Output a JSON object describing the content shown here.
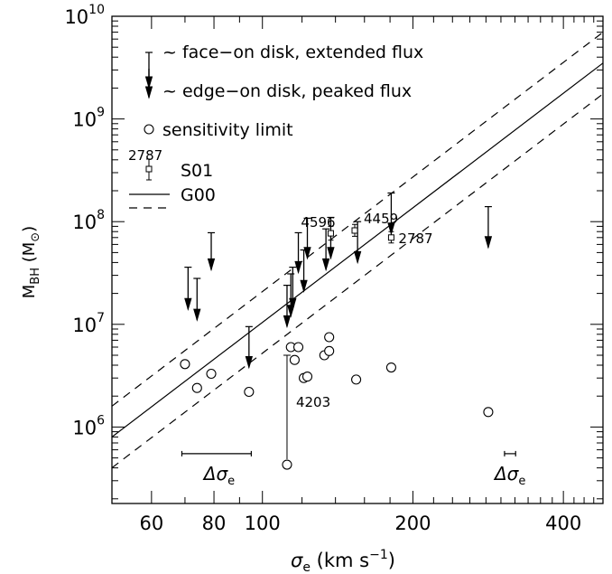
{
  "chart_data": {
    "type": "scatter",
    "xscale": "log",
    "yscale": "log",
    "xlim": [
      50,
      480
    ],
    "ylim": [
      180000,
      10000000000
    ],
    "xlabel": {
      "sym": "σ",
      "sub": "e",
      "rest": "(km s",
      "sup": "−1",
      "close": ")"
    },
    "ylabel": {
      "main": "M",
      "sub": "BH",
      "unit": "(M",
      "unitsub": "⊙",
      "close": ")"
    },
    "xticks": [
      {
        "value": 60,
        "label": "60"
      },
      {
        "value": 80,
        "label": "80"
      },
      {
        "value": 100,
        "label": "100"
      },
      {
        "value": 200,
        "label": "200"
      },
      {
        "value": 400,
        "label": "400"
      }
    ],
    "yticks": [
      {
        "value": 1000000,
        "base": "10",
        "exp": "6"
      },
      {
        "value": 10000000,
        "base": "10",
        "exp": "7"
      },
      {
        "value": 100000000,
        "base": "10",
        "exp": "8"
      },
      {
        "value": 1000000000,
        "base": "10",
        "exp": "9"
      },
      {
        "value": 10000000000,
        "base": "10",
        "exp": "10"
      }
    ],
    "legend": [
      {
        "symbol": "long-arrow",
        "text": "~ face−on disk, extended flux"
      },
      {
        "symbol": "short-arrow",
        "text": "~ edge−on disk, peaked flux"
      },
      {
        "symbol": "circle",
        "text": "sensitivity limit"
      },
      {
        "symbol": "square-errorbar",
        "text": "S01",
        "tag": "2787"
      },
      {
        "symbol": "solid-line",
        "text": "G00"
      },
      {
        "symbol": "dashed-line",
        "text": ""
      }
    ],
    "relation": {
      "name": "G00",
      "points": [
        [
          50,
          800000
        ],
        [
          480,
          3500000000
        ]
      ],
      "dex_offset": 0.3
    },
    "upper_limits": [
      {
        "sigma": 71,
        "top": 36000000,
        "bottom": 14000000
      },
      {
        "sigma": 74,
        "top": 28000000,
        "bottom": 11000000
      },
      {
        "sigma": 79,
        "top": 78000000,
        "bottom": 34000000
      },
      {
        "sigma": 94,
        "top": 9500000,
        "bottom": 3800000
      },
      {
        "sigma": 112,
        "top": 24000000,
        "bottom": 9500000
      },
      {
        "sigma": 114,
        "top": 31000000,
        "bottom": 12000000
      },
      {
        "sigma": 115,
        "top": 36000000,
        "bottom": 14000000
      },
      {
        "sigma": 118,
        "top": 78000000,
        "bottom": 32000000
      },
      {
        "sigma": 121,
        "top": 53000000,
        "bottom": 21000000
      },
      {
        "sigma": 123,
        "top": 108000000,
        "bottom": 44000000
      },
      {
        "sigma": 134,
        "top": 85000000,
        "bottom": 34000000
      },
      {
        "sigma": 137,
        "top": 110000000,
        "bottom": 44000000
      },
      {
        "sigma": 155,
        "top": 100000000,
        "bottom": 40000000
      },
      {
        "sigma": 181,
        "top": 190000000,
        "bottom": 76000000
      },
      {
        "sigma": 283,
        "top": 140000000,
        "bottom": 56000000
      }
    ],
    "sensitivity_limits": [
      {
        "sigma": 70,
        "mass": 4100000
      },
      {
        "sigma": 74,
        "mass": 2400000
      },
      {
        "sigma": 79,
        "mass": 3300000
      },
      {
        "sigma": 94,
        "mass": 2200000
      },
      {
        "sigma": 112,
        "mass": 430000
      },
      {
        "sigma": 114,
        "mass": 6000000
      },
      {
        "sigma": 116,
        "mass": 4500000
      },
      {
        "sigma": 118,
        "mass": 6000000
      },
      {
        "sigma": 121,
        "mass": 3000000
      },
      {
        "sigma": 123,
        "mass": 3100000
      },
      {
        "sigma": 133,
        "mass": 5000000
      },
      {
        "sigma": 136,
        "mass": 5500000
      },
      {
        "sigma": 136,
        "mass": 7500000
      },
      {
        "sigma": 154,
        "mass": 2900000
      },
      {
        "sigma": 181,
        "mass": 3800000
      },
      {
        "sigma": 283,
        "mass": 1400000
      }
    ],
    "s01_detections": [
      {
        "sigma": 137,
        "mass": 77000000,
        "err_lo": 66000000,
        "err_hi": 90000000,
        "label": "4596"
      },
      {
        "sigma": 153,
        "mass": 82000000,
        "err_lo": 72000000,
        "err_hi": 94000000,
        "label": "4459"
      },
      {
        "sigma": 181,
        "mass": 70000000,
        "err_lo": 62000000,
        "err_hi": 80000000,
        "label": "2787"
      }
    ],
    "ngc4203_limit": {
      "sigma": 112,
      "top": 5000000,
      "bottom": 430000,
      "label": "4203"
    },
    "uncertainty_bars": [
      {
        "center": 82,
        "low": 69,
        "high": 95,
        "mass": 550000,
        "label_sym": "Δσ",
        "label_sub": "e"
      },
      {
        "center": 313,
        "low": 305,
        "high": 321,
        "mass": 550000,
        "label_sym": "Δσ",
        "label_sub": "e"
      }
    ]
  }
}
